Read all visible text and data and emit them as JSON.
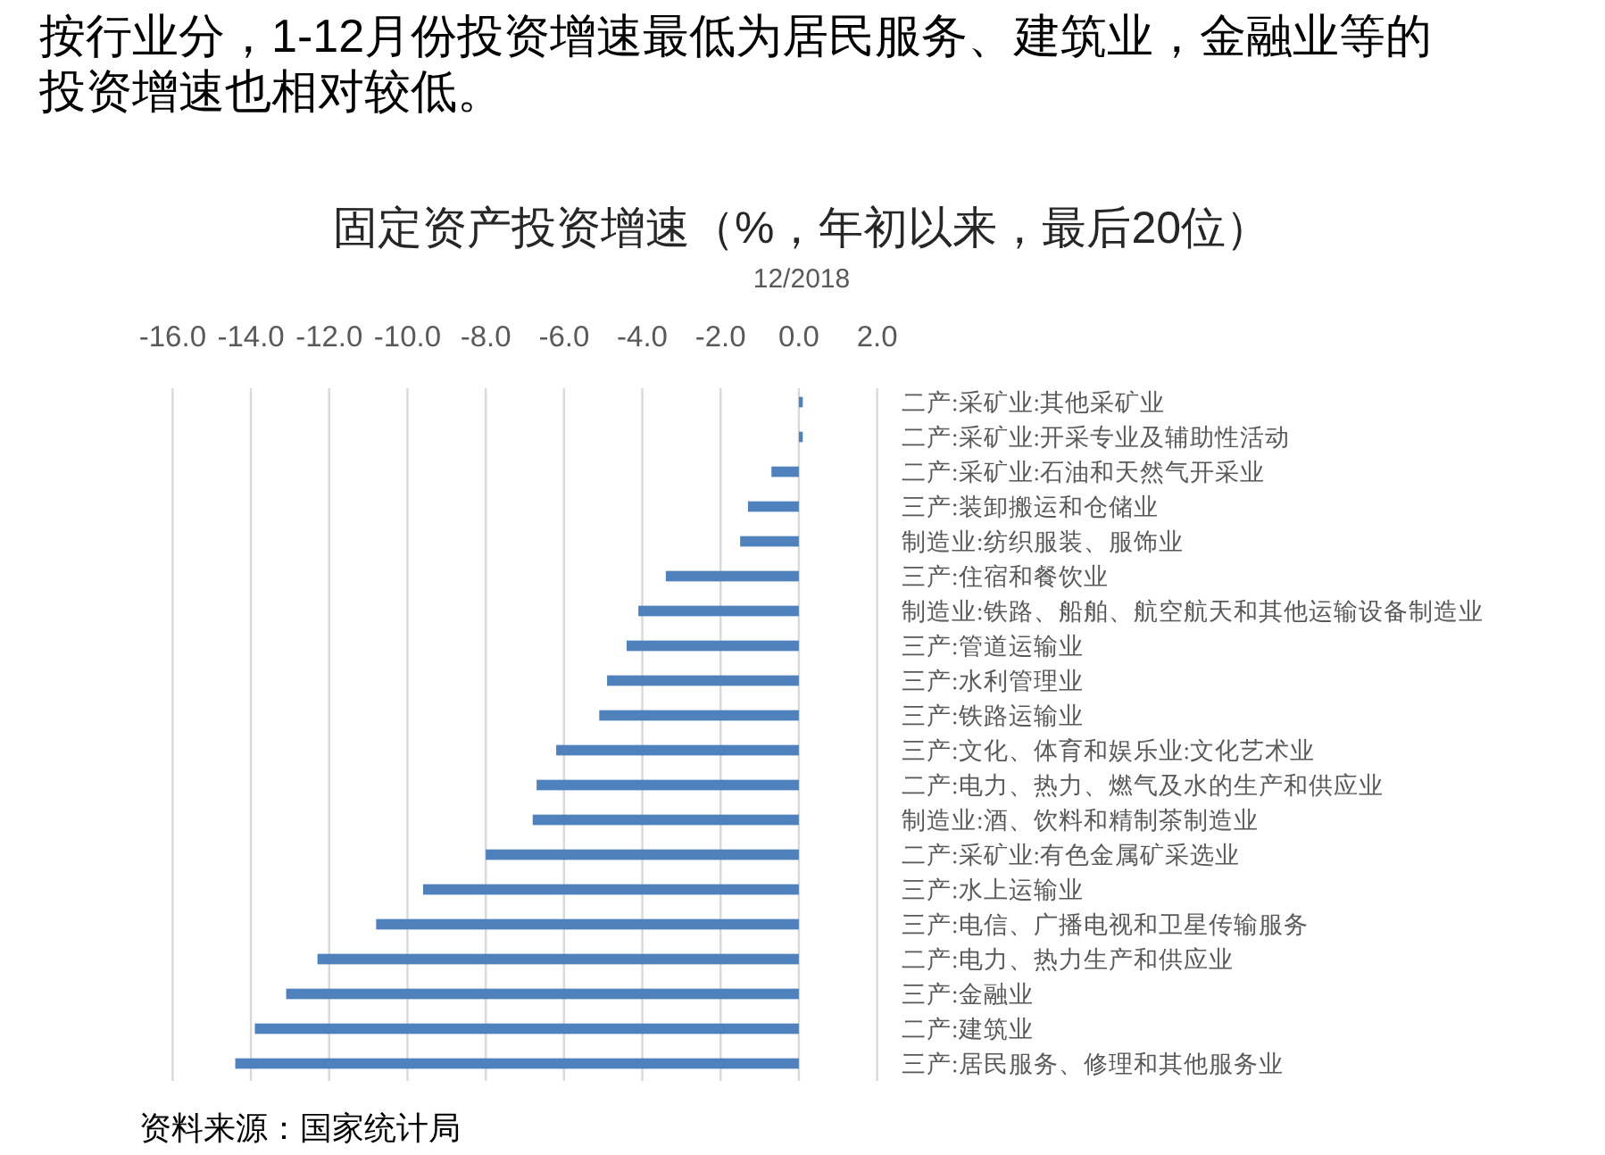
{
  "chart_data": {
    "type": "bar",
    "orientation": "horizontal",
    "title": "固定资产投资增速（%，年初以来，最后20位）",
    "subtitle": "12/2018",
    "annotations": [
      "按行业分，1-12月份投资增速最低为居民服务、建筑业，金融业等的投资增速也相对较低。",
      "资料来源：国家统计局"
    ],
    "categories": [
      "二产:采矿业:其他采矿业",
      "二产:采矿业:开采专业及辅助性活动",
      "二产:采矿业:石油和天然气开采业",
      "三产:装卸搬运和仓储业",
      "制造业:纺织服装、服饰业",
      "三产:住宿和餐饮业",
      "制造业:铁路、船舶、航空航天和其他运输设备制造业",
      "三产:管道运输业",
      "三产:水利管理业",
      "三产:铁路运输业",
      "三产:文化、体育和娱乐业:文化艺术业",
      "二产:电力、热力、燃气及水的生产和供应业",
      "制造业:酒、饮料和精制茶制造业",
      "二产:采矿业:有色金属矿采选业",
      "三产:水上运输业",
      "三产:电信、广播电视和卫星传输服务",
      "二产:电力、热力生产和供应业",
      "三产:金融业",
      "二产:建筑业",
      "三产:居民服务、修理和其他服务业"
    ],
    "values": [
      0.1,
      0.1,
      -0.7,
      -1.3,
      -1.5,
      -3.4,
      -4.1,
      -4.4,
      -4.9,
      -5.1,
      -6.2,
      -6.7,
      -6.8,
      -8.0,
      -9.6,
      -10.8,
      -12.3,
      -13.1,
      -13.9,
      -14.4
    ],
    "color": "#4f81bd",
    "xlim": [
      -16,
      2
    ],
    "xticks": [
      {
        "value": -16,
        "label": "-16.0"
      },
      {
        "value": -14,
        "label": "-14.0"
      },
      {
        "value": -12,
        "label": "-12.0"
      },
      {
        "value": -10,
        "label": "-10.0"
      },
      {
        "value": -8,
        "label": "-8.0"
      },
      {
        "value": -6,
        "label": "-6.0"
      },
      {
        "value": -4,
        "label": "-4.0"
      },
      {
        "value": -2,
        "label": "-2.0"
      },
      {
        "value": 0,
        "label": "0.0"
      },
      {
        "value": 2,
        "label": "2.0"
      }
    ],
    "grid": "x"
  }
}
